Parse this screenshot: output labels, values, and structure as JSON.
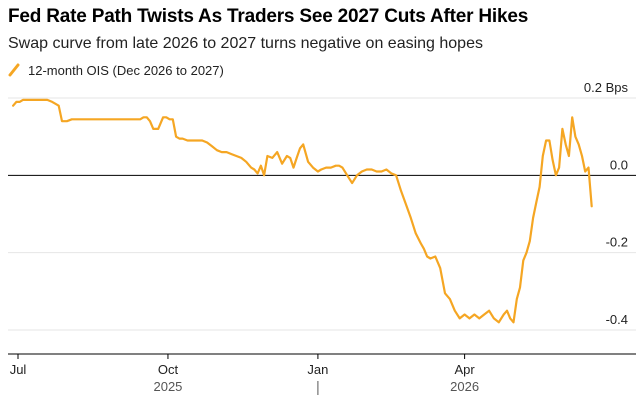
{
  "title": "Fed Rate Path Twists As Traders See 2027 Cuts After Hikes",
  "subtitle": "Swap curve from late 2026 to 2027 turns negative on easing hopes",
  "accent_color": "#f5a623",
  "chart_data": {
    "type": "line",
    "title": "Fed Rate Path Twists As Traders See 2027 Cuts After Hikes",
    "subtitle": "Swap curve from late 2026 to 2027 turns negative on easing hopes",
    "xlabel": "",
    "ylabel": "",
    "y_unit": "Bps",
    "ylim": [
      -0.4,
      0.2
    ],
    "xlim": [
      "2025-07-01",
      "2026-06-20"
    ],
    "y_ticks": [
      0.2,
      0.0,
      -0.2,
      -0.4
    ],
    "y_tick_labels": [
      "0.2 Bps",
      "0.0",
      "-0.2",
      "-0.4"
    ],
    "x_ticks": [
      "2025-07-01",
      "2025-10-01",
      "2026-01-01",
      "2026-04-01"
    ],
    "x_tick_labels": [
      "Jul",
      "Oct",
      "Jan",
      "Apr"
    ],
    "x_year_labels": [
      {
        "label": "2025",
        "at": "2025-10-01"
      },
      {
        "label": "2026",
        "at": "2026-04-01"
      }
    ],
    "grid": "horizontal",
    "legend_position": "top-left",
    "series": [
      {
        "name": "12-month OIS (Dec 2026 to 2027)",
        "color": "#f5a623",
        "x": [
          "2025-06-28",
          "2025-06-30",
          "2025-07-02",
          "2025-07-04",
          "2025-07-07",
          "2025-07-10",
          "2025-07-13",
          "2025-07-16",
          "2025-07-19",
          "2025-07-22",
          "2025-07-24",
          "2025-07-26",
          "2025-07-28",
          "2025-07-31",
          "2025-08-03",
          "2025-08-06",
          "2025-08-09",
          "2025-08-12",
          "2025-08-15",
          "2025-08-18",
          "2025-08-21",
          "2025-08-24",
          "2025-08-27",
          "2025-08-30",
          "2025-09-02",
          "2025-09-05",
          "2025-09-08",
          "2025-09-11",
          "2025-09-14",
          "2025-09-16",
          "2025-09-18",
          "2025-09-20",
          "2025-09-22",
          "2025-09-25",
          "2025-09-28",
          "2025-09-30",
          "2025-10-02",
          "2025-10-04",
          "2025-10-06",
          "2025-10-08",
          "2025-10-10",
          "2025-10-13",
          "2025-10-16",
          "2025-10-19",
          "2025-10-22",
          "2025-10-25",
          "2025-10-28",
          "2025-10-31",
          "2025-11-03",
          "2025-11-06",
          "2025-11-09",
          "2025-11-12",
          "2025-11-15",
          "2025-11-18",
          "2025-11-21",
          "2025-11-23",
          "2025-11-25",
          "2025-11-27",
          "2025-11-29",
          "2025-12-01",
          "2025-12-04",
          "2025-12-07",
          "2025-12-10",
          "2025-12-13",
          "2025-12-15",
          "2025-12-17",
          "2025-12-19",
          "2025-12-21",
          "2025-12-23",
          "2025-12-26",
          "2025-12-29",
          "2026-01-01",
          "2026-01-03",
          "2026-01-06",
          "2026-01-09",
          "2026-01-12",
          "2026-01-14",
          "2026-01-16",
          "2026-01-19",
          "2026-01-22",
          "2026-01-25",
          "2026-01-28",
          "2026-01-31",
          "2026-02-03",
          "2026-02-06",
          "2026-02-09",
          "2026-02-12",
          "2026-02-15",
          "2026-02-18",
          "2026-02-21",
          "2026-02-24",
          "2026-02-27",
          "2026-03-02",
          "2026-03-05",
          "2026-03-07",
          "2026-03-09",
          "2026-03-11",
          "2026-03-14",
          "2026-03-17",
          "2026-03-20",
          "2026-03-23",
          "2026-03-26",
          "2026-03-29",
          "2026-04-01",
          "2026-04-04",
          "2026-04-07",
          "2026-04-10",
          "2026-04-13",
          "2026-04-16",
          "2026-04-19",
          "2026-04-22",
          "2026-04-25",
          "2026-04-27",
          "2026-04-29",
          "2026-05-01",
          "2026-05-03",
          "2026-05-05",
          "2026-05-07",
          "2026-05-09",
          "2026-05-11",
          "2026-05-13",
          "2026-05-15",
          "2026-05-17",
          "2026-05-19",
          "2026-05-21",
          "2026-05-23",
          "2026-05-25",
          "2026-05-27",
          "2026-05-29",
          "2026-05-31",
          "2026-06-02",
          "2026-06-04",
          "2026-06-06",
          "2026-06-08",
          "2026-06-10",
          "2026-06-12",
          "2026-06-14",
          "2026-06-16",
          "2026-06-18"
        ],
        "y": [
          0.18,
          0.19,
          0.19,
          0.195,
          0.195,
          0.195,
          0.195,
          0.195,
          0.195,
          0.19,
          0.185,
          0.18,
          0.14,
          0.14,
          0.145,
          0.145,
          0.145,
          0.145,
          0.145,
          0.145,
          0.145,
          0.145,
          0.145,
          0.145,
          0.145,
          0.145,
          0.145,
          0.145,
          0.145,
          0.15,
          0.15,
          0.14,
          0.12,
          0.12,
          0.15,
          0.15,
          0.145,
          0.145,
          0.1,
          0.095,
          0.095,
          0.09,
          0.09,
          0.09,
          0.09,
          0.085,
          0.075,
          0.065,
          0.06,
          0.06,
          0.055,
          0.05,
          0.045,
          0.035,
          0.02,
          0.015,
          0.005,
          0.025,
          0.0,
          0.05,
          0.045,
          0.06,
          0.03,
          0.05,
          0.045,
          0.02,
          0.045,
          0.07,
          0.08,
          0.035,
          0.02,
          0.01,
          0.015,
          0.02,
          0.02,
          0.025,
          0.025,
          0.02,
          0.0,
          -0.02,
          0.0,
          0.01,
          0.015,
          0.015,
          0.01,
          0.01,
          0.015,
          0.005,
          0.0,
          -0.04,
          -0.075,
          -0.11,
          -0.15,
          -0.175,
          -0.19,
          -0.21,
          -0.215,
          -0.21,
          -0.24,
          -0.305,
          -0.32,
          -0.35,
          -0.37,
          -0.36,
          -0.37,
          -0.36,
          -0.37,
          -0.36,
          -0.35,
          -0.37,
          -0.38,
          -0.36,
          -0.35,
          -0.37,
          -0.38,
          -0.32,
          -0.29,
          -0.22,
          -0.2,
          -0.17,
          -0.11,
          -0.07,
          -0.03,
          0.05,
          0.09,
          0.09,
          0.04,
          0.0,
          0.02,
          0.12,
          0.08,
          0.05,
          0.15,
          0.1,
          0.08,
          0.05,
          0.01,
          0.02,
          -0.08
        ]
      }
    ]
  }
}
